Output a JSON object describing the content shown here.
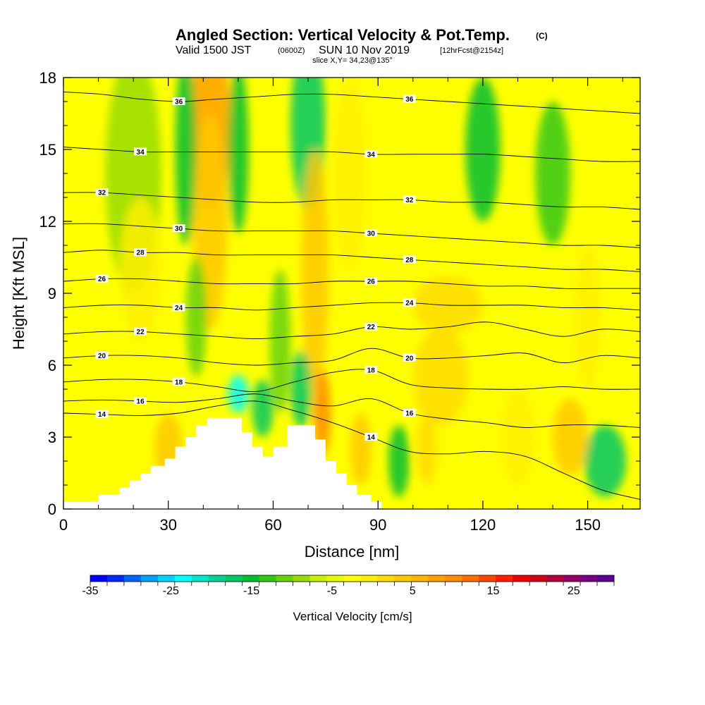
{
  "title": {
    "main": "Angled Section: Vertical Velocity & Pot.Temp.",
    "tag": "(C)",
    "valid_prefix": "Valid 1500 JST",
    "valid_zulu": "(0600Z)",
    "valid_date": "SUN 10 Nov 2019",
    "valid_fcst": "[12hrFcst@2154z]",
    "slice": "slice X,Y= 34,23@135°"
  },
  "chart_data": {
    "type": "heatmap",
    "xlabel": "Distance [nm]",
    "ylabel": "Height [Kft MSL]",
    "xlim": [
      0,
      165
    ],
    "ylim": [
      0,
      18
    ],
    "x_ticks": [
      "0",
      "30",
      "60",
      "90",
      "120",
      "150"
    ],
    "x_tick_values": [
      0,
      30,
      60,
      90,
      120,
      150
    ],
    "y_ticks": [
      "0",
      "3",
      "6",
      "9",
      "12",
      "15",
      "18"
    ],
    "y_tick_values": [
      0,
      3,
      6,
      9,
      12,
      15,
      18
    ],
    "colorbar": {
      "label": "Vertical Velocity [cm/s]",
      "tick_labels": [
        "-35",
        "-25",
        "-15",
        "-5",
        "5",
        "15",
        "25"
      ],
      "tick_values": [
        -35,
        -25,
        -15,
        -5,
        5,
        15,
        25
      ],
      "range": [
        -35,
        30
      ],
      "step": 2.5,
      "colors": [
        "#0000ff",
        "#0028ff",
        "#0064ff",
        "#00a0ff",
        "#00d2ff",
        "#00ffff",
        "#00e6c8",
        "#00d296",
        "#00c864",
        "#00be32",
        "#32c814",
        "#64d20a",
        "#96dc00",
        "#c8f000",
        "#e6ff00",
        "#ffff00",
        "#fff000",
        "#ffdc00",
        "#ffc800",
        "#ffb400",
        "#ffa000",
        "#ff8c00",
        "#ff6e00",
        "#ff4600",
        "#ff1e00",
        "#f00000",
        "#d20014",
        "#b4003c",
        "#960064",
        "#780082",
        "#5a0096"
      ]
    },
    "theta_contours": [
      {
        "label": "14",
        "y": [
          4.0,
          3.95,
          3.9,
          4.0,
          4.3,
          4.5,
          4.1,
          3.6,
          3.0,
          2.4,
          2.3,
          2.4,
          2.2,
          1.5,
          0.8,
          0.4
        ]
      },
      {
        "label": "16",
        "y": [
          4.5,
          4.55,
          4.5,
          4.45,
          4.6,
          4.8,
          4.5,
          4.3,
          4.6,
          4.0,
          3.75,
          3.6,
          3.4,
          3.5,
          3.5,
          3.4
        ]
      },
      {
        "label": "18",
        "y": [
          5.3,
          5.4,
          5.4,
          5.3,
          5.1,
          4.9,
          5.3,
          5.7,
          5.8,
          5.2,
          5.05,
          5.0,
          5.0,
          5.1,
          5.0,
          5.0
        ]
      },
      {
        "label": "20",
        "y": [
          6.3,
          6.4,
          6.4,
          6.3,
          6.1,
          6.0,
          6.1,
          6.2,
          6.7,
          6.3,
          6.3,
          6.4,
          6.5,
          6.1,
          6.4,
          6.3
        ]
      },
      {
        "label": "22",
        "y": [
          7.3,
          7.4,
          7.4,
          7.3,
          7.2,
          7.1,
          7.2,
          7.3,
          7.6,
          7.5,
          7.6,
          7.8,
          7.5,
          7.2,
          7.5,
          7.4
        ]
      },
      {
        "label": "24",
        "y": [
          8.4,
          8.5,
          8.5,
          8.4,
          8.4,
          8.3,
          8.4,
          8.5,
          8.6,
          8.6,
          8.5,
          8.5,
          8.5,
          8.4,
          8.4,
          8.3
        ]
      },
      {
        "label": "26",
        "y": [
          9.5,
          9.6,
          9.6,
          9.5,
          9.4,
          9.4,
          9.4,
          9.5,
          9.5,
          9.5,
          9.4,
          9.3,
          9.3,
          9.2,
          9.2,
          9.2
        ]
      },
      {
        "label": "28",
        "y": [
          10.7,
          10.8,
          10.7,
          10.7,
          10.6,
          10.6,
          10.6,
          10.6,
          10.5,
          10.4,
          10.3,
          10.2,
          10.1,
          10.0,
          10.0,
          9.9
        ]
      },
      {
        "label": "30",
        "y": [
          11.9,
          11.9,
          11.8,
          11.7,
          11.6,
          11.6,
          11.6,
          11.6,
          11.5,
          11.4,
          11.3,
          11.2,
          11.1,
          11.0,
          11.0,
          10.9
        ]
      },
      {
        "label": "32",
        "y": [
          13.2,
          13.2,
          13.1,
          13.0,
          12.9,
          12.8,
          12.8,
          12.9,
          12.9,
          12.9,
          12.8,
          12.8,
          12.7,
          12.6,
          12.6,
          12.5
        ]
      },
      {
        "label": "34",
        "y": [
          15.1,
          15.0,
          14.9,
          14.9,
          14.9,
          14.9,
          14.9,
          14.9,
          14.8,
          14.8,
          14.8,
          14.8,
          14.7,
          14.6,
          14.5,
          14.5
        ]
      },
      {
        "label": "36",
        "y": [
          17.4,
          17.3,
          17.1,
          17.0,
          17.1,
          17.2,
          17.3,
          17.3,
          17.2,
          17.1,
          17.0,
          16.9,
          16.8,
          16.7,
          16.6,
          16.5
        ]
      }
    ],
    "contour_x": [
      0,
      11,
      22,
      33,
      44,
      55,
      66,
      77,
      88,
      99,
      110,
      121,
      132,
      143,
      154,
      165
    ],
    "terrain": {
      "x": [
        0,
        10,
        10,
        16,
        16,
        19,
        19,
        22,
        22,
        25,
        25,
        29,
        29,
        32,
        32,
        35,
        35,
        38,
        38,
        41,
        41,
        44,
        44,
        47,
        47,
        51,
        51,
        54,
        54,
        57,
        57,
        60,
        60,
        64,
        64,
        67,
        67,
        72,
        72,
        75,
        75,
        78,
        78,
        81,
        81,
        84,
        84,
        88,
        88,
        91,
        91,
        165
      ],
      "y": [
        0.3,
        0.3,
        0.6,
        0.6,
        0.9,
        0.9,
        1.2,
        1.2,
        1.5,
        1.5,
        1.8,
        1.8,
        2.1,
        2.1,
        2.6,
        2.6,
        3.0,
        3.0,
        3.5,
        3.5,
        3.8,
        3.8,
        3.8,
        3.8,
        3.8,
        3.8,
        3.2,
        3.2,
        2.6,
        2.6,
        2.2,
        2.2,
        2.6,
        2.6,
        3.5,
        3.5,
        3.5,
        3.5,
        2.9,
        2.9,
        2.0,
        2.0,
        1.5,
        1.5,
        1.0,
        1.0,
        0.6,
        0.6,
        0.3,
        0.3,
        0,
        0
      ]
    }
  }
}
